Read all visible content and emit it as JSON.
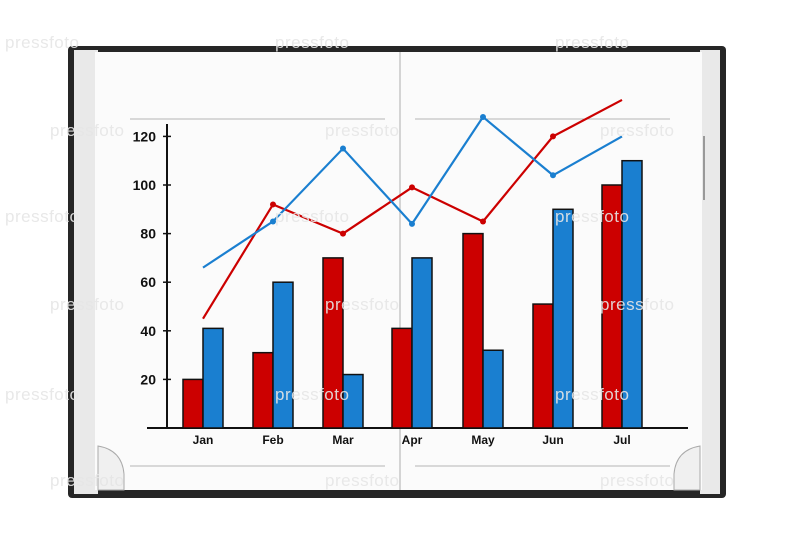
{
  "watermark_text": "pressfoto",
  "colors": {
    "red": "#cc0000",
    "blue": "#1a7fd0",
    "cover": "#262626",
    "page": "#fbfbfb"
  },
  "chart_data": {
    "type": "bar",
    "categories": [
      "Jan",
      "Feb",
      "Mar",
      "Apr",
      "May",
      "Jun",
      "Jul"
    ],
    "y_ticks": [
      20,
      40,
      60,
      80,
      100,
      120
    ],
    "ylim": [
      0,
      125
    ],
    "title": "",
    "xlabel": "",
    "ylabel": "",
    "bar_series": [
      {
        "color": "#cc0000",
        "values": [
          20,
          31,
          70,
          41,
          80,
          51,
          100
        ]
      },
      {
        "color": "#1a7fd0",
        "values": [
          41,
          60,
          22,
          70,
          32,
          90,
          110
        ]
      }
    ],
    "line_series": [
      {
        "color": "#cc0000",
        "values": [
          45,
          92,
          80,
          99,
          85,
          120,
          135
        ],
        "markers": "dots"
      },
      {
        "color": "#1a7fd0",
        "values": [
          66,
          85,
          115,
          84,
          128,
          104,
          120
        ],
        "markers": "dots"
      }
    ]
  }
}
